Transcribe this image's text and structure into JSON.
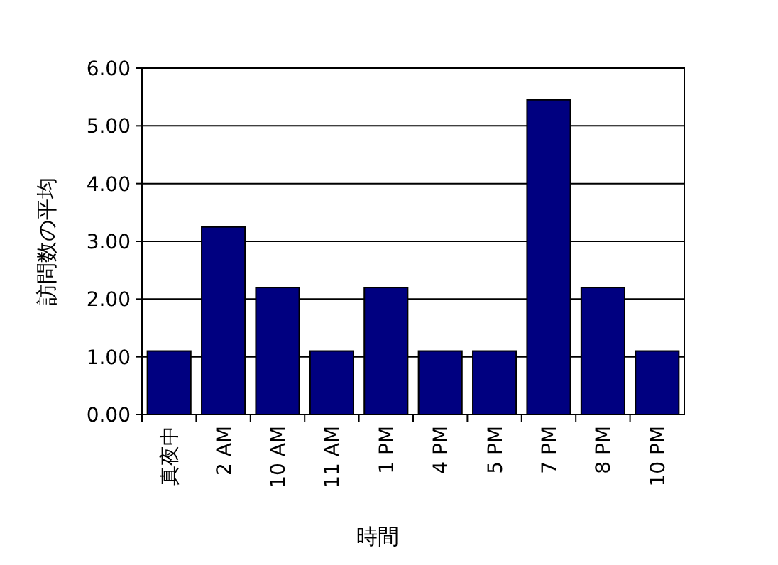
{
  "chart_data": {
    "type": "bar",
    "xlabel": "時間",
    "ylabel": "訪問数の平均",
    "categories": [
      "真夜中",
      "2 AM",
      "10 AM",
      "11 AM",
      "1 PM",
      "4 PM",
      "5 PM",
      "7 PM",
      "8 PM",
      "10 PM"
    ],
    "values": [
      1.1,
      3.25,
      2.2,
      1.1,
      2.2,
      1.1,
      1.1,
      5.45,
      2.2,
      1.1
    ],
    "color": "#000080",
    "ylim": [
      0,
      6
    ],
    "yticks": [
      {
        "value": 0,
        "label": "0.00"
      },
      {
        "value": 1,
        "label": "1.00"
      },
      {
        "value": 2,
        "label": "2.00"
      },
      {
        "value": 3,
        "label": "3.00"
      },
      {
        "value": 4,
        "label": "4.00"
      },
      {
        "value": 5,
        "label": "5.00"
      },
      {
        "value": 6,
        "label": "6.00"
      }
    ],
    "grid": "y"
  }
}
